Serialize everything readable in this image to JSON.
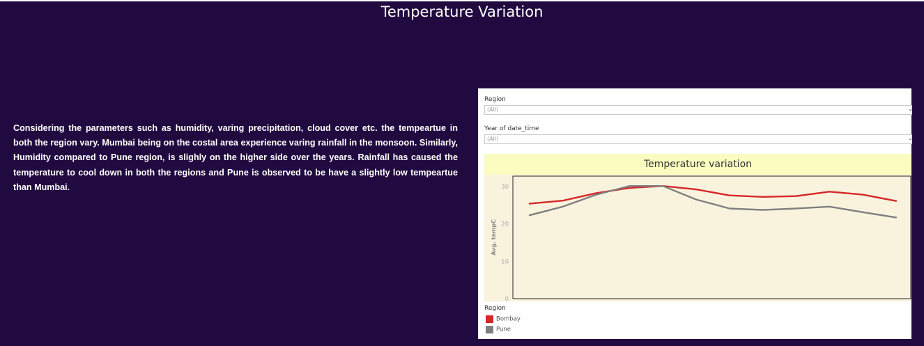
{
  "page": {
    "title": "Temperature Variation",
    "description": "Considering the parameters such as humidity, varing precipitation, cloud cover etc. the tempeartue in both the region vary. Mumbai being on the costal area experience varing rainfall in the monsoon. Similarly, Humidity compared to Pune region, is slighly on the higher side over the years. Rainfall has caused the temperature to cool down in both the regions and Pune is observed to be have a slightly low tempeartue than Mumbai."
  },
  "filters": {
    "region": {
      "label": "Region",
      "value": "(All)"
    },
    "year": {
      "label": "Year of date_time",
      "value": "(All)"
    }
  },
  "colors": {
    "background": "#210a3f",
    "bombay": "#d62728",
    "pune": "#7f7f7f",
    "plot_bg": "#f9f3de",
    "title_bar": "#fbfcc0"
  },
  "chart_data": {
    "type": "line",
    "title": "Temperature variation",
    "ylabel": "Avg. tempC",
    "xlabel": "",
    "ylim": [
      0,
      32
    ],
    "yticks": [
      0,
      10,
      20,
      30
    ],
    "x": [
      1,
      2,
      3,
      4,
      5,
      6,
      7,
      8,
      9,
      10,
      11,
      12
    ],
    "grid": false,
    "legend_title": "Region",
    "legend_position": "bottom-left",
    "series": [
      {
        "name": "Bombay",
        "color": "#d62728",
        "values": [
          25.4,
          26.2,
          28.2,
          29.6,
          30.1,
          29.2,
          27.6,
          27.2,
          27.4,
          28.6,
          27.8,
          26.1
        ]
      },
      {
        "name": "Pune",
        "color": "#7f7f7f",
        "values": [
          22.3,
          24.6,
          27.8,
          30.1,
          30.1,
          26.5,
          24.1,
          23.7,
          24.1,
          24.6,
          23.1,
          21.7
        ]
      }
    ]
  }
}
